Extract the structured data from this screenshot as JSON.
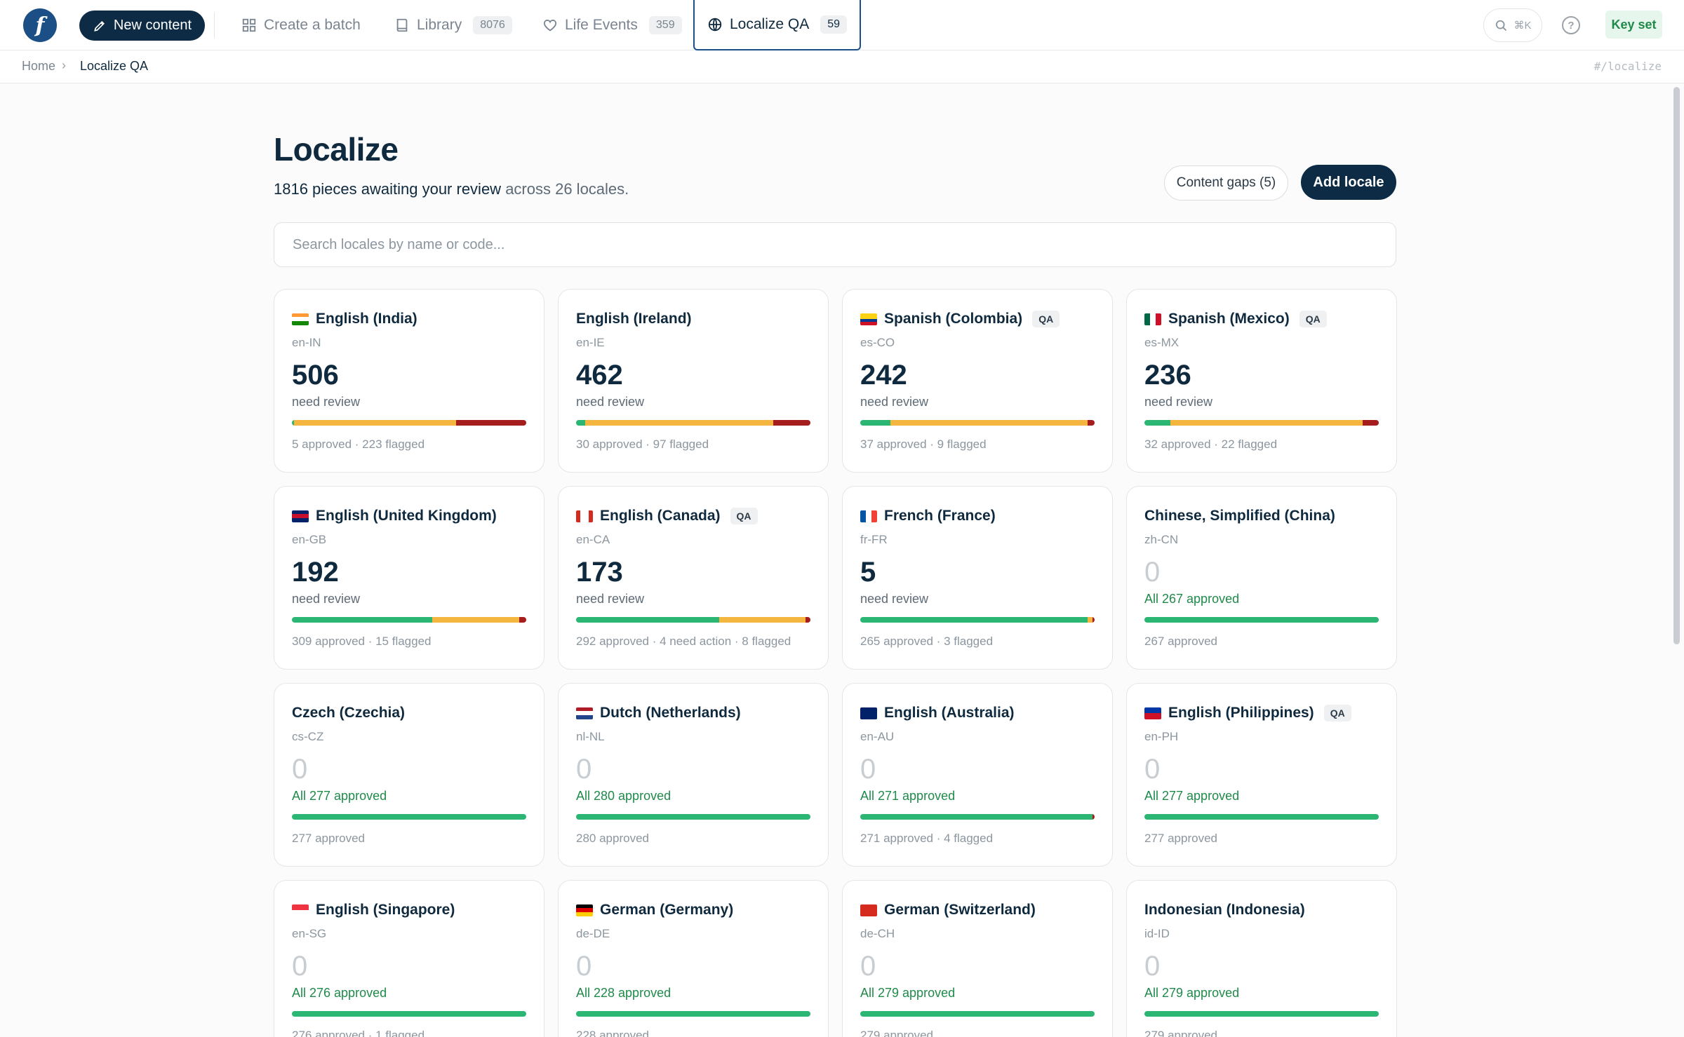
{
  "app": {
    "logo_letter": "f",
    "new_content_label": "New content",
    "nav": [
      {
        "label": "Create a batch",
        "icon": "grid-icon",
        "count": ""
      },
      {
        "label": "Library",
        "icon": "book-icon",
        "count": "8076"
      },
      {
        "label": "Life Events",
        "icon": "heart-icon",
        "count": "359"
      },
      {
        "label": "Localize QA",
        "icon": "globe-icon",
        "count": "59",
        "active": true
      }
    ],
    "shortcut_hint": "⌘K",
    "help_label": "?",
    "keyset_label": "Key set"
  },
  "breadcrumb": {
    "home": "Home",
    "separator": "›",
    "current": "Localize QA",
    "route": "#/localize"
  },
  "page": {
    "title": "Localize",
    "subtitle_strong": "1816 pieces awaiting your review",
    "subtitle_rest": " across 26 locales.",
    "content_gaps_label": "Content gaps (5)",
    "add_locale_label": "Add locale",
    "search_placeholder": "Search locales by name or code..."
  },
  "colors": {
    "approved": "#2bb673",
    "pending": "#f4b63f",
    "flagged": "#a61d1d",
    "primary": "#0d2b44"
  },
  "locales": [
    {
      "name": "English (India)",
      "code": "en-IN",
      "flag": "in",
      "qa": false,
      "count": "506",
      "status": "need review",
      "footer": "5 approved · 223 flagged",
      "bar": {
        "approved": 0.01,
        "pending": 0.69,
        "flagged": 0.3
      }
    },
    {
      "name": "English (Ireland)",
      "code": "en-IE",
      "flag": "",
      "qa": false,
      "count": "462",
      "status": "need review",
      "footer": "30 approved · 97 flagged",
      "bar": {
        "approved": 0.04,
        "pending": 0.8,
        "flagged": 0.16
      }
    },
    {
      "name": "Spanish (Colombia)",
      "code": "es-CO",
      "flag": "co",
      "qa": true,
      "count": "242",
      "status": "need review",
      "footer": "37 approved · 9 flagged",
      "bar": {
        "approved": 0.13,
        "pending": 0.84,
        "flagged": 0.03
      }
    },
    {
      "name": "Spanish (Mexico)",
      "code": "es-MX",
      "flag": "mx",
      "qa": true,
      "count": "236",
      "status": "need review",
      "footer": "32 approved · 22 flagged",
      "bar": {
        "approved": 0.11,
        "pending": 0.82,
        "flagged": 0.07
      }
    },
    {
      "name": "English (United Kingdom)",
      "code": "en-GB",
      "flag": "gb",
      "qa": false,
      "count": "192",
      "status": "need review",
      "footer": "309 approved · 15 flagged",
      "bar": {
        "approved": 0.6,
        "pending": 0.37,
        "flagged": 0.03
      }
    },
    {
      "name": "English (Canada)",
      "code": "en-CA",
      "flag": "ca",
      "qa": true,
      "count": "173",
      "status": "need review",
      "footer": "292 approved · 4 need action · 8 flagged",
      "bar": {
        "approved": 0.61,
        "pending": 0.37,
        "flagged": 0.02
      }
    },
    {
      "name": "French (France)",
      "code": "fr-FR",
      "flag": "fr",
      "qa": false,
      "count": "5",
      "status": "need review",
      "footer": "265 approved · 3 flagged",
      "bar": {
        "approved": 0.97,
        "pending": 0.02,
        "flagged": 0.01
      }
    },
    {
      "name": "Chinese, Simplified (China)",
      "code": "zh-CN",
      "flag": "",
      "qa": false,
      "count": "0",
      "status": "All 267 approved",
      "footer": "267 approved",
      "bar": {
        "approved": 1,
        "pending": 0,
        "flagged": 0
      }
    },
    {
      "name": "Czech (Czechia)",
      "code": "cs-CZ",
      "flag": "",
      "qa": false,
      "count": "0",
      "status": "All 277 approved",
      "footer": "277 approved",
      "bar": {
        "approved": 1,
        "pending": 0,
        "flagged": 0
      }
    },
    {
      "name": "Dutch (Netherlands)",
      "code": "nl-NL",
      "flag": "nl",
      "qa": false,
      "count": "0",
      "status": "All 280 approved",
      "footer": "280 approved",
      "bar": {
        "approved": 1,
        "pending": 0,
        "flagged": 0
      }
    },
    {
      "name": "English (Australia)",
      "code": "en-AU",
      "flag": "au",
      "qa": false,
      "count": "0",
      "status": "All 271 approved",
      "footer": "271 approved · 4 flagged",
      "bar": {
        "approved": 0.99,
        "pending": 0,
        "flagged": 0.01
      }
    },
    {
      "name": "English (Philippines)",
      "code": "en-PH",
      "flag": "ph",
      "qa": true,
      "count": "0",
      "status": "All 277 approved",
      "footer": "277 approved",
      "bar": {
        "approved": 1,
        "pending": 0,
        "flagged": 0
      }
    },
    {
      "name": "English (Singapore)",
      "code": "en-SG",
      "flag": "sg",
      "qa": false,
      "count": "0",
      "status": "All 276 approved",
      "footer": "276 approved · 1 flagged",
      "bar": {
        "approved": 1,
        "pending": 0,
        "flagged": 0
      }
    },
    {
      "name": "German (Germany)",
      "code": "de-DE",
      "flag": "de",
      "qa": false,
      "count": "0",
      "status": "All 228 approved",
      "footer": "228 approved",
      "bar": {
        "approved": 1,
        "pending": 0,
        "flagged": 0
      }
    },
    {
      "name": "German (Switzerland)",
      "code": "de-CH",
      "flag": "ch",
      "qa": false,
      "count": "0",
      "status": "All 279 approved",
      "footer": "279 approved",
      "bar": {
        "approved": 1,
        "pending": 0,
        "flagged": 0
      }
    },
    {
      "name": "Indonesian (Indonesia)",
      "code": "id-ID",
      "flag": "",
      "qa": false,
      "count": "0",
      "status": "All 279 approved",
      "footer": "279 approved",
      "bar": {
        "approved": 1,
        "pending": 0,
        "flagged": 0
      }
    }
  ]
}
